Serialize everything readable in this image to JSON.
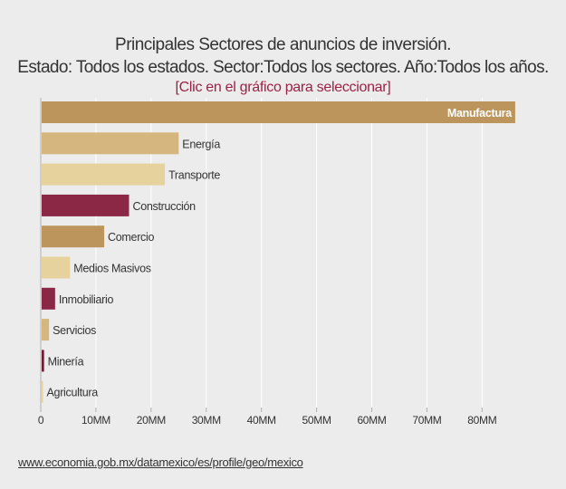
{
  "title": "Principales Sectores de anuncios de inversión.",
  "subtitle": "Estado: Todos los estados. Sector:Todos los sectores. Año:Todos los años.",
  "hint": "[Clic en el gráfico para seleccionar]",
  "source_url": "www.economia.gob.mx/datamexico/es/profile/geo/mexico",
  "colors": {
    "background": "#ececec",
    "gold_dark": "#bc955c",
    "gold_mid": "#d4b67e",
    "gold_light": "#e6d29c",
    "wine": "#8a2846",
    "wine_dark": "#6f1d33",
    "gridline": "#ffffff",
    "text": "#333333",
    "accent": "#9b2247"
  },
  "chart_data": {
    "type": "bar",
    "orientation": "horizontal",
    "title": "Principales Sectores de anuncios de inversión.",
    "subtitle": "Estado: Todos los estados. Sector:Todos los sectores. Año:Todos los años.",
    "xlabel": "",
    "ylabel": "",
    "xlim": [
      0,
      87000000
    ],
    "x_ticks": [
      0,
      10000000,
      20000000,
      30000000,
      40000000,
      50000000,
      60000000,
      70000000,
      80000000
    ],
    "x_tick_labels": [
      "0",
      "10MM",
      "20MM",
      "30MM",
      "40MM",
      "50MM",
      "60MM",
      "70MM",
      "80MM"
    ],
    "grid": true,
    "legend": false,
    "categories": [
      "Manufactura",
      "Energía",
      "Transporte",
      "Construcción",
      "Comercio",
      "Medios Masivos",
      "Inmobiliario",
      "Servicios",
      "Minería",
      "Agricultura"
    ],
    "values": [
      86000000,
      25000000,
      22500000,
      16000000,
      11500000,
      5300000,
      2600000,
      1500000,
      600000,
      100000
    ],
    "bar_colors": [
      "#bc955c",
      "#d4b67e",
      "#e6d29c",
      "#8a2846",
      "#bc955c",
      "#e6d29c",
      "#8a2846",
      "#d4b67e",
      "#6f1d33",
      "#e6d29c"
    ]
  }
}
